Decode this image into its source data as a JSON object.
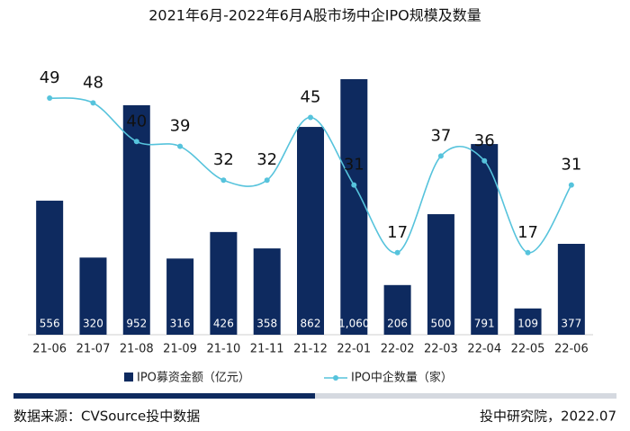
{
  "chart_data": {
    "type": "bar-line",
    "title": "2021年6月-2022年6月A股市场中企IPO规模及数量",
    "categories": [
      "21-06",
      "21-07",
      "21-08",
      "21-09",
      "21-10",
      "21-11",
      "21-12",
      "22-01",
      "22-02",
      "22-03",
      "22-04",
      "22-05",
      "22-06"
    ],
    "series": [
      {
        "name": "IPO募资金额（亿元）",
        "type": "bar",
        "color": "#0e2a5f",
        "values": [
          556,
          320,
          952,
          316,
          426,
          358,
          862,
          1060,
          206,
          500,
          791,
          109,
          377
        ],
        "value_labels": [
          "556",
          "320",
          "952",
          "316",
          "426",
          "358",
          "862",
          "1,060",
          "206",
          "500",
          "791",
          "109",
          "377"
        ]
      },
      {
        "name": "IPO中企数量（家）",
        "type": "line",
        "color": "#56c3dc",
        "axis": "y2",
        "values": [
          49,
          48,
          40,
          39,
          32,
          32,
          45,
          31,
          17,
          37,
          36,
          17,
          31
        ]
      }
    ],
    "source": "数据来源：CVSource投中数据",
    "credit": "投中研究院，2022.07"
  }
}
